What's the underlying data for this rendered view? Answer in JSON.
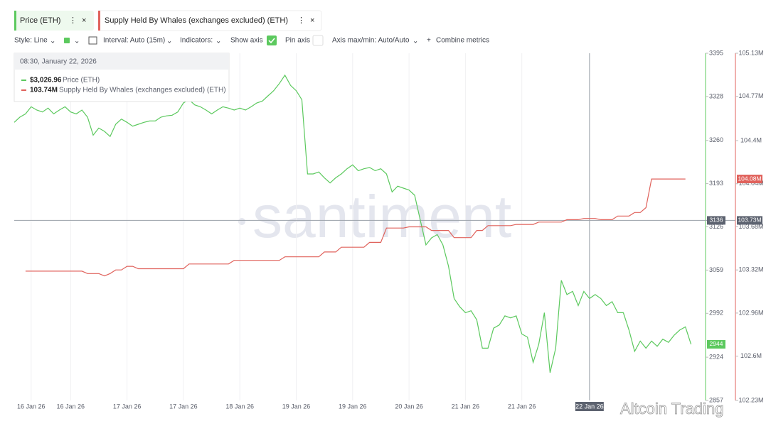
{
  "ui": {
    "style": "Style: Line",
    "interval": "Interval: Auto (15m)",
    "indicators": "Indicators:",
    "show_axis": "Show axis",
    "pin_axis": "Pin axis",
    "axis_minmax": "Axis max/min: Auto/Auto",
    "combine": "Combine metrics",
    "watermark": "santiment",
    "overlay_watermark": "Altcoin Trading",
    "tooltip": {
      "time": "08:30, January 22, 2026",
      "values": [
        "$3,026.96",
        "103.74M"
      ]
    }
  },
  "chart_data": {
    "type": "line",
    "categories": [
      null,
      null,
      null,
      "16 Jan 26",
      null,
      null,
      null,
      null,
      null,
      null,
      "16 Jan 26",
      null,
      null,
      null,
      null,
      null,
      null,
      null,
      null,
      null,
      "17 Jan 26",
      null,
      null,
      null,
      null,
      null,
      null,
      null,
      null,
      null,
      "17 Jan 26",
      null,
      null,
      null,
      null,
      null,
      null,
      null,
      null,
      null,
      "18 Jan 26",
      null,
      null,
      null,
      null,
      null,
      null,
      null,
      null,
      null,
      "19 Jan 26",
      null,
      null,
      null,
      null,
      null,
      null,
      null,
      null,
      null,
      "19 Jan 26",
      null,
      null,
      null,
      null,
      null,
      null,
      null,
      null,
      null,
      "20 Jan 26",
      null,
      null,
      null,
      null,
      null,
      null,
      null,
      null,
      null,
      "21 Jan 26",
      null,
      null,
      null,
      null,
      null,
      null,
      null,
      null,
      null,
      "21 Jan 26",
      null,
      null,
      null,
      null,
      null,
      null,
      null,
      null,
      null,
      null,
      null,
      "22 Jan 26",
      null,
      null,
      null,
      null,
      null,
      null,
      null,
      null,
      null,
      null,
      null,
      null,
      null,
      null,
      null,
      null,
      null,
      null
    ],
    "series": [
      {
        "name": "Price (ETH)",
        "color": "#5cc95e",
        "values": [
          3288,
          3296,
          3301,
          3312,
          3307,
          3304,
          3310,
          3301,
          3307,
          3312,
          3304,
          3301,
          3307,
          3296,
          3268,
          3279,
          3274,
          3266,
          3285,
          3293,
          3288,
          3282,
          3285,
          3288,
          3290,
          3290,
          3296,
          3298,
          3299,
          3304,
          3318,
          3323,
          3315,
          3312,
          3307,
          3301,
          3307,
          3312,
          3310,
          3307,
          3310,
          3307,
          3312,
          3318,
          3321,
          3329,
          3337,
          3348,
          3361,
          3345,
          3337,
          3323,
          3208,
          3208,
          3211,
          3202,
          3194,
          3202,
          3208,
          3216,
          3222,
          3213,
          3216,
          3218,
          3213,
          3216,
          3208,
          3180,
          3189,
          3186,
          3183,
          3175,
          3136,
          3098,
          3109,
          3114,
          3098,
          3065,
          3015,
          3002,
          2993,
          2996,
          2982,
          2938,
          2938,
          2969,
          2974,
          2988,
          2985,
          2988,
          2960,
          2955,
          2916,
          2944,
          2993,
          2900,
          2938,
          3043,
          3021,
          3026,
          3004,
          3026,
          3015,
          3021,
          3015,
          3004,
          3010,
          2993,
          2993,
          2966,
          2933,
          2949,
          2938,
          2949,
          2941,
          2952,
          2947,
          2958,
          2966,
          2971,
          2944
        ]
      },
      {
        "name": "Supply Held By Whales (exchanges excluded) (ETH)",
        "color": "#e0625c",
        "axis": "y2",
        "values": [
          null,
          null,
          103310000,
          103310000,
          103310000,
          103310000,
          103310000,
          103310000,
          103310000,
          103310000,
          103310000,
          103310000,
          103310000,
          103290000,
          103290000,
          103290000,
          103270000,
          103290000,
          103320000,
          103320000,
          103350000,
          103350000,
          103330000,
          103330000,
          103330000,
          103330000,
          103330000,
          103330000,
          103330000,
          103330000,
          103330000,
          103370000,
          103370000,
          103370000,
          103370000,
          103370000,
          103370000,
          103370000,
          103370000,
          103400000,
          103400000,
          103400000,
          103400000,
          103400000,
          103400000,
          103400000,
          103400000,
          103400000,
          103430000,
          103430000,
          103430000,
          103430000,
          103430000,
          103430000,
          103430000,
          103470000,
          103470000,
          103470000,
          103510000,
          103510000,
          103510000,
          103510000,
          103510000,
          103550000,
          103550000,
          103550000,
          103670000,
          103670000,
          103670000,
          103670000,
          103680000,
          103680000,
          103680000,
          103680000,
          103650000,
          103650000,
          103650000,
          103650000,
          103590000,
          103590000,
          103590000,
          103590000,
          103650000,
          103650000,
          103690000,
          103690000,
          103690000,
          103690000,
          103690000,
          103700000,
          103700000,
          103700000,
          103700000,
          103720000,
          103720000,
          103720000,
          103720000,
          103720000,
          103740000,
          103740000,
          103740000,
          103750000,
          103750000,
          103750000,
          103740000,
          103740000,
          103740000,
          103770000,
          103770000,
          103770000,
          103800000,
          103800000,
          103840000,
          104080000,
          104080000,
          104080000,
          104080000,
          104080000,
          104080000,
          104080000,
          null
        ]
      }
    ],
    "ylim": [
      2857,
      3395
    ],
    "yticks": [
      3395,
      3328,
      3260,
      3193,
      3126,
      3059,
      2992,
      2924,
      2857
    ],
    "y2lim": [
      102230000,
      105130000
    ],
    "y2ticks": [
      {
        "value": 105130000,
        "label": "105.13M"
      },
      {
        "value": 104770000,
        "label": "104.77M"
      },
      {
        "value": 104400000,
        "label": "104.4M"
      },
      {
        "value": 104040000,
        "label": "104.04M"
      },
      {
        "value": 103680000,
        "label": "103.68M"
      },
      {
        "value": 103320000,
        "label": "103.32M"
      },
      {
        "value": 102960000,
        "label": "102.96M"
      },
      {
        "value": 102600000,
        "label": "102.6M"
      },
      {
        "value": 102230000,
        "label": "102.23M"
      }
    ],
    "y2_last_label": "104.08M",
    "crosshair": {
      "y": 3136,
      "y2_label": "103.73M"
    },
    "grid": true
  }
}
